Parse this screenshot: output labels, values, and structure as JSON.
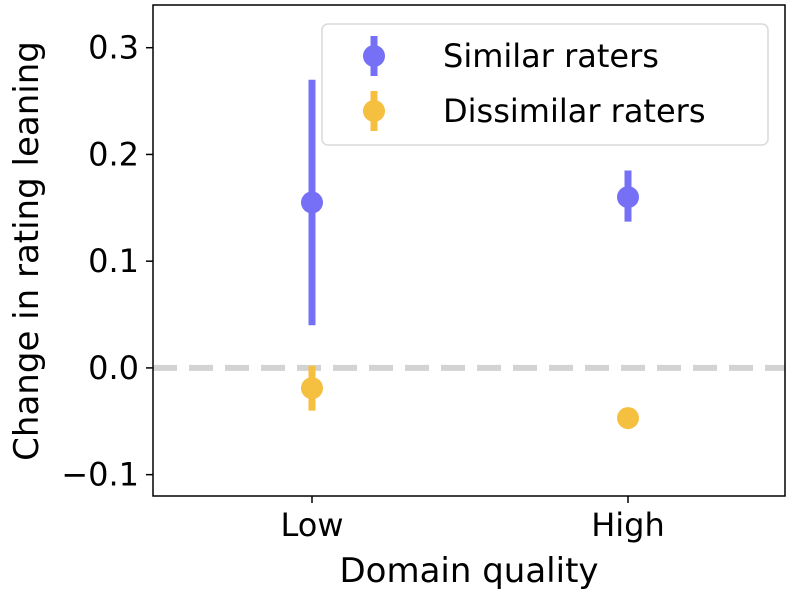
{
  "chart_data": {
    "type": "scatter",
    "title": "",
    "xlabel": "Domain quality",
    "ylabel": "Change in rating leaning",
    "categories": [
      "Low",
      "High"
    ],
    "yticks": [
      -0.1,
      0.0,
      0.1,
      0.2,
      0.3
    ],
    "ytick_labels": [
      "−0.1",
      "0.0",
      "0.1",
      "0.2",
      "0.3"
    ],
    "ylim": [
      -0.12,
      0.34
    ],
    "reference_line": {
      "y": 0.0,
      "style": "dashed",
      "color": "#d3d3d3"
    },
    "legend_position": "top-right",
    "series": [
      {
        "name": "Similar raters",
        "color": "#7570f5",
        "values": [
          0.155,
          0.16
        ],
        "err_low": [
          0.04,
          0.137
        ],
        "err_high": [
          0.27,
          0.185
        ]
      },
      {
        "name": "Dissimilar raters",
        "color": "#f5bf3f",
        "values": [
          -0.019,
          -0.047
        ],
        "err_low": [
          -0.04,
          -0.047
        ],
        "err_high": [
          0.002,
          -0.047
        ]
      }
    ]
  }
}
